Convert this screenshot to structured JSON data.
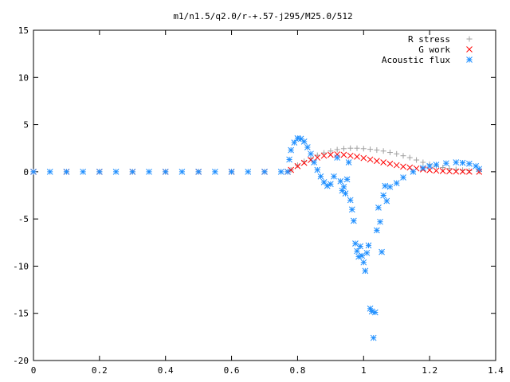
{
  "chart_data": {
    "type": "scatter",
    "title": "m1/n1.5/q2.0/r-+.57-j295/M25.0/512",
    "xlabel": "",
    "ylabel": "",
    "xlim": [
      0,
      1.4
    ],
    "ylim": [
      -20,
      15
    ],
    "x_ticks": [
      0,
      0.2,
      0.4,
      0.6,
      0.8,
      1,
      1.2,
      1.4
    ],
    "x_tick_labels": [
      "0",
      "0.2",
      "0.4",
      "0.6",
      "0.8",
      "1",
      "1.2",
      "1.4"
    ],
    "y_ticks": [
      -20,
      -15,
      -10,
      -5,
      0,
      5,
      10,
      15
    ],
    "y_tick_labels": [
      "-20",
      "-15",
      "-10",
      "-5",
      "0",
      "5",
      "10",
      "15"
    ],
    "grid": false,
    "legend_position": "top-right",
    "series": [
      {
        "name": "R stress",
        "marker": "+",
        "color": "#a0a0a0",
        "points": [
          [
            0.0,
            0
          ],
          [
            0.1,
            0
          ],
          [
            0.2,
            0
          ],
          [
            0.3,
            0
          ],
          [
            0.4,
            0
          ],
          [
            0.5,
            0
          ],
          [
            0.6,
            0
          ],
          [
            0.7,
            0
          ],
          [
            0.77,
            0
          ],
          [
            0.78,
            0.2
          ],
          [
            0.8,
            0.7
          ],
          [
            0.82,
            1.1
          ],
          [
            0.84,
            1.45
          ],
          [
            0.86,
            1.75
          ],
          [
            0.88,
            2.0
          ],
          [
            0.9,
            2.2
          ],
          [
            0.92,
            2.35
          ],
          [
            0.94,
            2.45
          ],
          [
            0.96,
            2.5
          ],
          [
            0.98,
            2.5
          ],
          [
            1.0,
            2.45
          ],
          [
            1.02,
            2.38
          ],
          [
            1.04,
            2.3
          ],
          [
            1.06,
            2.2
          ],
          [
            1.08,
            2.05
          ],
          [
            1.1,
            1.9
          ],
          [
            1.12,
            1.7
          ],
          [
            1.14,
            1.5
          ],
          [
            1.16,
            1.25
          ],
          [
            1.18,
            1.0
          ],
          [
            1.2,
            0.8
          ],
          [
            1.22,
            0.6
          ],
          [
            1.24,
            0.45
          ],
          [
            1.26,
            0.35
          ],
          [
            1.28,
            0.25
          ],
          [
            1.3,
            0.18
          ],
          [
            1.32,
            0.12
          ],
          [
            1.35,
            0.05
          ]
        ]
      },
      {
        "name": "G work",
        "marker": "x",
        "color": "#ff0000",
        "points": [
          [
            0.0,
            0
          ],
          [
            0.1,
            0
          ],
          [
            0.2,
            0
          ],
          [
            0.3,
            0
          ],
          [
            0.4,
            0
          ],
          [
            0.5,
            0
          ],
          [
            0.6,
            0
          ],
          [
            0.7,
            0
          ],
          [
            0.77,
            0
          ],
          [
            0.78,
            0.2
          ],
          [
            0.8,
            0.6
          ],
          [
            0.82,
            0.95
          ],
          [
            0.84,
            1.25
          ],
          [
            0.86,
            1.5
          ],
          [
            0.88,
            1.7
          ],
          [
            0.9,
            1.8
          ],
          [
            0.92,
            1.85
          ],
          [
            0.94,
            1.8
          ],
          [
            0.96,
            1.7
          ],
          [
            0.98,
            1.6
          ],
          [
            1.0,
            1.45
          ],
          [
            1.02,
            1.3
          ],
          [
            1.04,
            1.15
          ],
          [
            1.06,
            1.0
          ],
          [
            1.08,
            0.85
          ],
          [
            1.1,
            0.7
          ],
          [
            1.12,
            0.55
          ],
          [
            1.14,
            0.45
          ],
          [
            1.16,
            0.35
          ],
          [
            1.18,
            0.25
          ],
          [
            1.2,
            0.18
          ],
          [
            1.22,
            0.12
          ],
          [
            1.24,
            0.08
          ],
          [
            1.26,
            0.05
          ],
          [
            1.28,
            0.03
          ],
          [
            1.3,
            0.02
          ],
          [
            1.32,
            0.01
          ],
          [
            1.35,
            0.0
          ]
        ]
      },
      {
        "name": "Acoustic flux",
        "marker": "*",
        "color": "#1f8fff",
        "points": [
          [
            0.0,
            0
          ],
          [
            0.05,
            0
          ],
          [
            0.1,
            0
          ],
          [
            0.15,
            0
          ],
          [
            0.2,
            0
          ],
          [
            0.25,
            0
          ],
          [
            0.3,
            0
          ],
          [
            0.35,
            0
          ],
          [
            0.4,
            0
          ],
          [
            0.45,
            0
          ],
          [
            0.5,
            0
          ],
          [
            0.55,
            0
          ],
          [
            0.6,
            0
          ],
          [
            0.65,
            0
          ],
          [
            0.7,
            0
          ],
          [
            0.75,
            0
          ],
          [
            0.77,
            0
          ],
          [
            0.775,
            1.3
          ],
          [
            0.78,
            2.3
          ],
          [
            0.79,
            3.1
          ],
          [
            0.8,
            3.55
          ],
          [
            0.81,
            3.5
          ],
          [
            0.82,
            3.2
          ],
          [
            0.83,
            2.6
          ],
          [
            0.84,
            1.9
          ],
          [
            0.85,
            1.0
          ],
          [
            0.86,
            0.2
          ],
          [
            0.87,
            -0.5
          ],
          [
            0.88,
            -1.1
          ],
          [
            0.89,
            -1.5
          ],
          [
            0.9,
            -1.3
          ],
          [
            0.91,
            -0.5
          ],
          [
            0.92,
            1.5
          ],
          [
            0.93,
            -1.0
          ],
          [
            0.935,
            -2.0
          ],
          [
            0.94,
            -1.6
          ],
          [
            0.945,
            -2.3
          ],
          [
            0.95,
            -0.8
          ],
          [
            0.955,
            1.0
          ],
          [
            0.96,
            -3.0
          ],
          [
            0.965,
            -4.0
          ],
          [
            0.97,
            -5.2
          ],
          [
            0.975,
            -7.6
          ],
          [
            0.98,
            -8.4
          ],
          [
            0.985,
            -9.0
          ],
          [
            0.99,
            -7.9
          ],
          [
            0.995,
            -8.9
          ],
          [
            1.0,
            -9.6
          ],
          [
            1.005,
            -10.5
          ],
          [
            1.01,
            -8.6
          ],
          [
            1.015,
            -7.8
          ],
          [
            1.02,
            -14.5
          ],
          [
            1.025,
            -14.8
          ],
          [
            1.03,
            -17.6
          ],
          [
            1.035,
            -14.9
          ],
          [
            1.04,
            -6.2
          ],
          [
            1.045,
            -3.8
          ],
          [
            1.05,
            -5.3
          ],
          [
            1.055,
            -8.5
          ],
          [
            1.06,
            -2.5
          ],
          [
            1.065,
            -1.5
          ],
          [
            1.07,
            -3.1
          ],
          [
            1.08,
            -1.6
          ],
          [
            1.1,
            -1.2
          ],
          [
            1.12,
            -0.6
          ],
          [
            1.15,
            0.0
          ],
          [
            1.18,
            0.4
          ],
          [
            1.2,
            0.6
          ],
          [
            1.22,
            0.75
          ],
          [
            1.25,
            0.9
          ],
          [
            1.28,
            1.0
          ],
          [
            1.3,
            0.95
          ],
          [
            1.32,
            0.85
          ],
          [
            1.34,
            0.6
          ],
          [
            1.35,
            0.3
          ]
        ]
      }
    ]
  }
}
